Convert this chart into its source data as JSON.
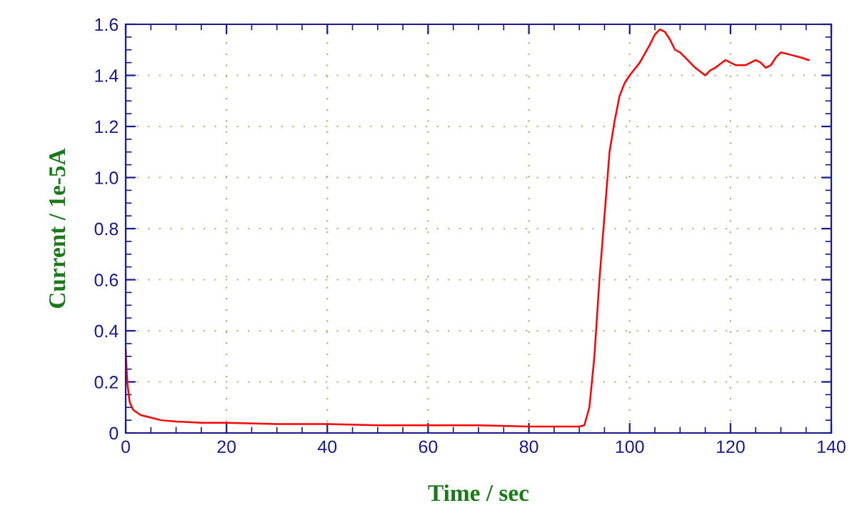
{
  "chart_data": {
    "type": "line",
    "xlabel": "Time / sec",
    "ylabel": "Current / 1e-5A",
    "xlim": [
      0,
      140
    ],
    "xticks": [
      0,
      20,
      40,
      60,
      80,
      100,
      120,
      140
    ],
    "ylim": [
      0,
      1.6
    ],
    "yticks": [
      0,
      0.2,
      0.4,
      0.6,
      0.8,
      {
        "value": 1,
        "label": "1.0"
      },
      1.2,
      1.4,
      1.6
    ],
    "grid": true,
    "line_style": "solid",
    "series": [
      {
        "color": "#ff0000",
        "x": [
          0,
          0.3,
          0.8,
          1.5,
          3,
          5,
          7,
          10,
          15,
          20,
          30,
          40,
          50,
          60,
          70,
          80,
          88,
          90,
          91,
          92,
          93,
          94,
          95,
          96,
          97,
          98,
          99,
          100,
          102,
          104,
          105,
          106,
          107,
          108,
          109,
          110,
          111,
          113,
          115,
          116,
          117,
          119,
          121,
          123,
          125,
          126,
          127,
          128,
          129,
          130,
          132,
          134,
          135.5
        ],
        "values": [
          0.33,
          0.2,
          0.12,
          0.09,
          0.07,
          0.06,
          0.05,
          0.045,
          0.04,
          0.04,
          0.035,
          0.035,
          0.03,
          0.03,
          0.03,
          0.025,
          0.025,
          0.025,
          0.03,
          0.1,
          0.3,
          0.6,
          0.85,
          1.1,
          1.22,
          1.32,
          1.37,
          1.4,
          1.45,
          1.52,
          1.56,
          1.58,
          1.57,
          1.54,
          1.5,
          1.49,
          1.47,
          1.43,
          1.4,
          1.42,
          1.43,
          1.46,
          1.44,
          1.44,
          1.46,
          1.45,
          1.43,
          1.44,
          1.47,
          1.49,
          1.48,
          1.47,
          1.46
        ]
      }
    ]
  }
}
